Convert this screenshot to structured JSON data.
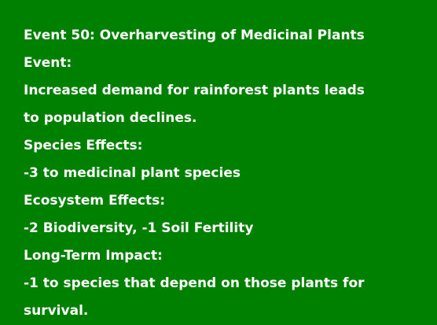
{
  "background_color": "#008000",
  "text_color": "#ffffff",
  "event": {
    "title": "Event 50: Overharvesting of Medicinal Plants",
    "event_label": "Event:",
    "event_text_line1": "Increased demand for rainforest plants leads",
    "event_text_line2": "to population declines.",
    "species_label": "Species Effects:",
    "species_text": "-3 to medicinal plant species",
    "ecosystem_label": "Ecosystem Effects:",
    "ecosystem_text": "-2 Biodiversity, -1 Soil Fertility",
    "longterm_label": "Long-Term Impact:",
    "longterm_text_line1": "-1 to species that depend on those plants for",
    "longterm_text_line2": "survival."
  }
}
